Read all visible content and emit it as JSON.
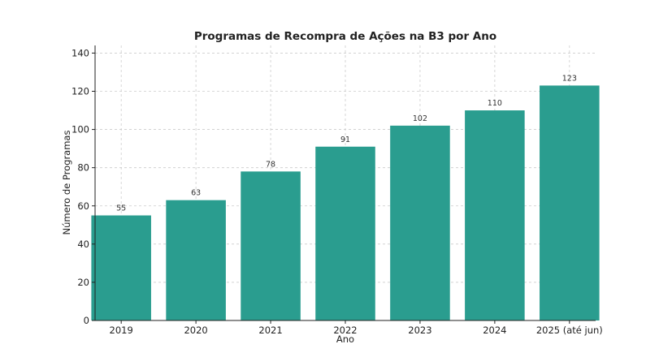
{
  "chart_data": {
    "type": "bar",
    "title": "Programas de Recompra de Ações na B3 por Ano",
    "xlabel": "Ano",
    "ylabel": "Número de Programas",
    "categories": [
      "2019",
      "2020",
      "2021",
      "2022",
      "2023",
      "2024",
      "2025 (até jun)"
    ],
    "values": [
      55,
      63,
      78,
      91,
      102,
      110,
      123
    ],
    "ylim": [
      0,
      144
    ],
    "yticks": [
      0,
      20,
      40,
      60,
      80,
      100,
      120,
      140
    ],
    "grid": true,
    "bar_color": "#2a9d8f",
    "data_labels": true
  }
}
